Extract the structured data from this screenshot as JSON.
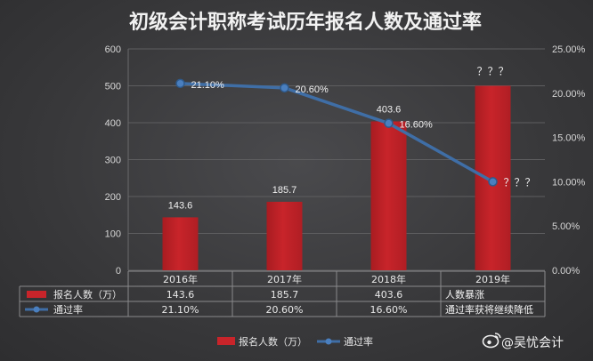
{
  "chart_data": {
    "type": "bar",
    "title": "初级会计职称考试历年报名人数及通过率",
    "categories": [
      "2016年",
      "2017年",
      "2018年",
      "2019年"
    ],
    "y_left": {
      "ticks": [
        "0",
        "100",
        "200",
        "300",
        "400",
        "500",
        "600"
      ],
      "ylim": [
        0,
        600
      ]
    },
    "y_right": {
      "ticks": [
        "0.00%",
        "5.00%",
        "10.00%",
        "15.00%",
        "20.00%",
        "25.00%"
      ],
      "ylim": [
        0,
        25
      ]
    },
    "series": [
      {
        "name": "报名人数（万）",
        "type": "bar",
        "color": "#c8242a",
        "values": [
          143.6,
          185.7,
          403.6,
          500
        ],
        "data_labels": [
          "143.6",
          "185.7",
          "403.6",
          "？？？"
        ]
      },
      {
        "name": "通过率",
        "type": "line",
        "color": "#3f6ea6",
        "values": [
          21.1,
          20.6,
          16.6,
          10.0
        ],
        "data_labels": [
          "21.10%",
          "20.60%",
          "16.60%",
          "？？？"
        ]
      }
    ],
    "table": {
      "rows": [
        {
          "label": "报名人数（万）",
          "cells": [
            "143.6",
            "185.7",
            "403.6"
          ],
          "note": "人数暴涨"
        },
        {
          "label": "通过率",
          "cells": [
            "21.10%",
            "20.60%",
            "16.60%"
          ],
          "note": "通过率获将继续降低"
        }
      ]
    },
    "legend": {
      "placement": "bottom-center",
      "items": [
        "报名人数（万）",
        "通过率"
      ]
    }
  },
  "watermark": {
    "text": "@吴忧会计"
  }
}
